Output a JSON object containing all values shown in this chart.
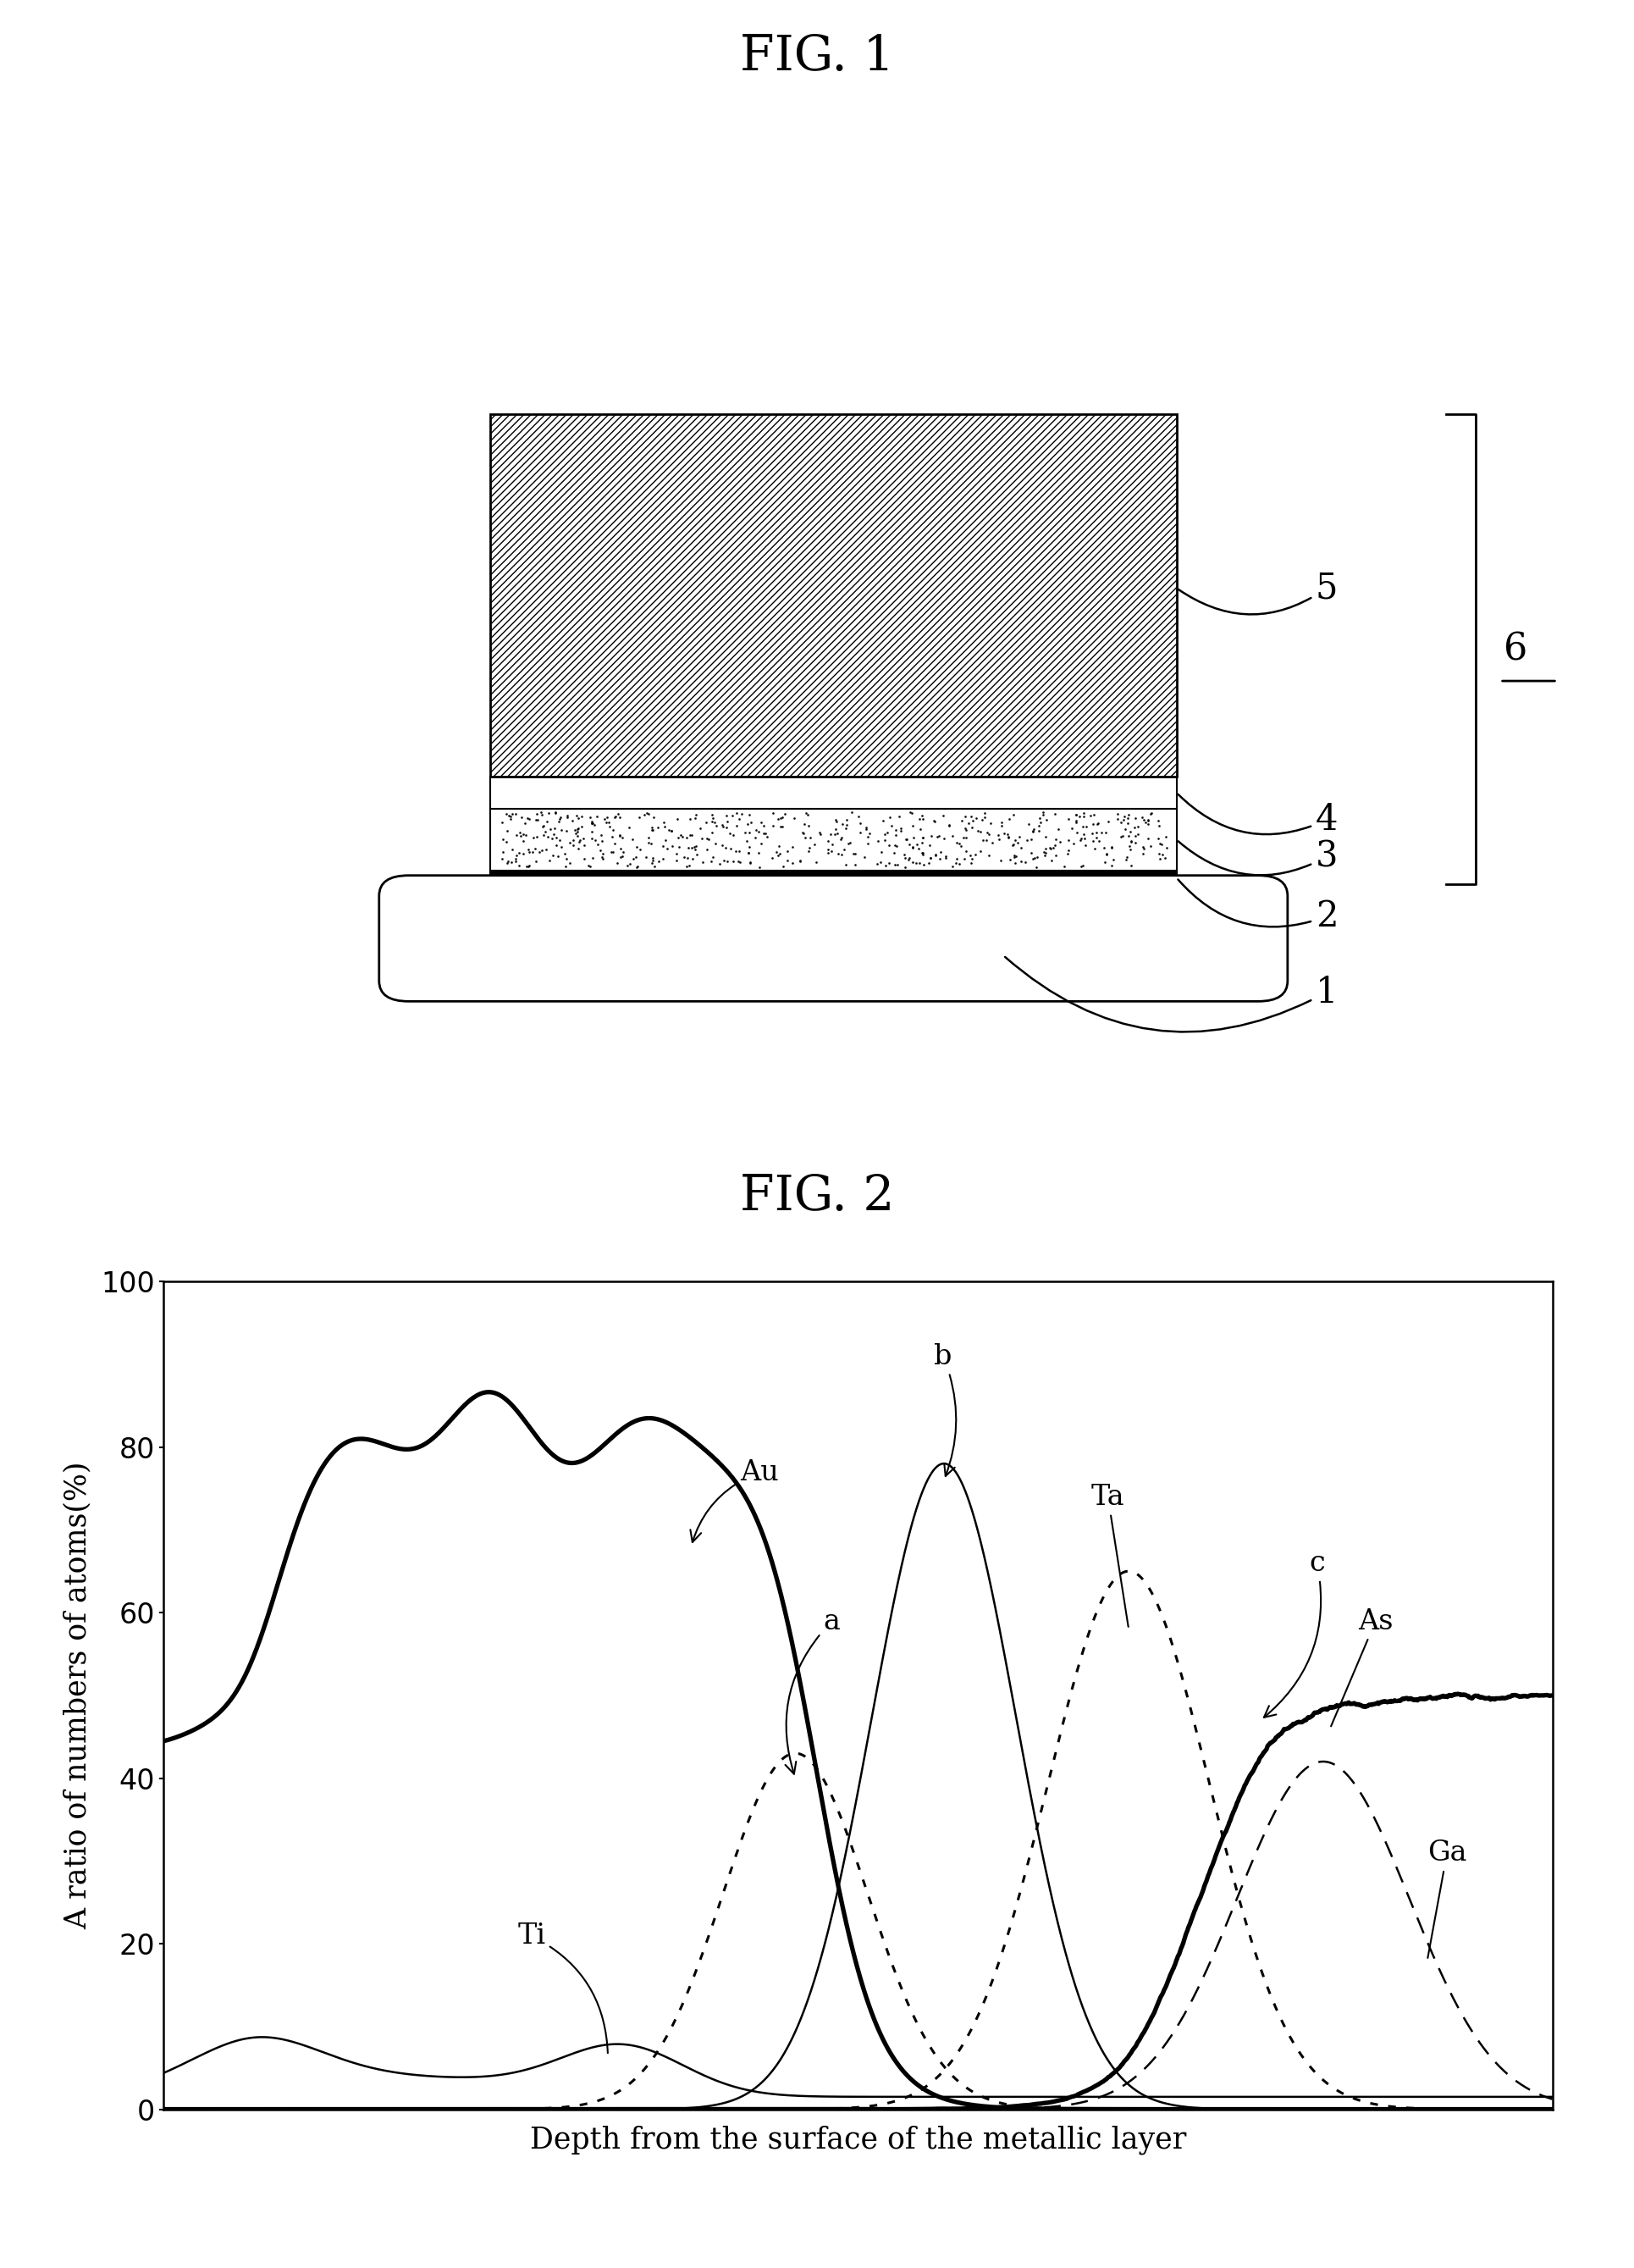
{
  "fig1_title": "FIG. 1",
  "fig2_title": "FIG. 2",
  "fig2_xlabel": "Depth from the surface of the metallic layer",
  "fig2_ylabel": "A ratio of numbers of atoms(%)",
  "fig2_yticks": [
    0,
    20,
    40,
    60,
    80,
    100
  ],
  "fig2_ylim": [
    0,
    100
  ],
  "bg_color": "#ffffff"
}
